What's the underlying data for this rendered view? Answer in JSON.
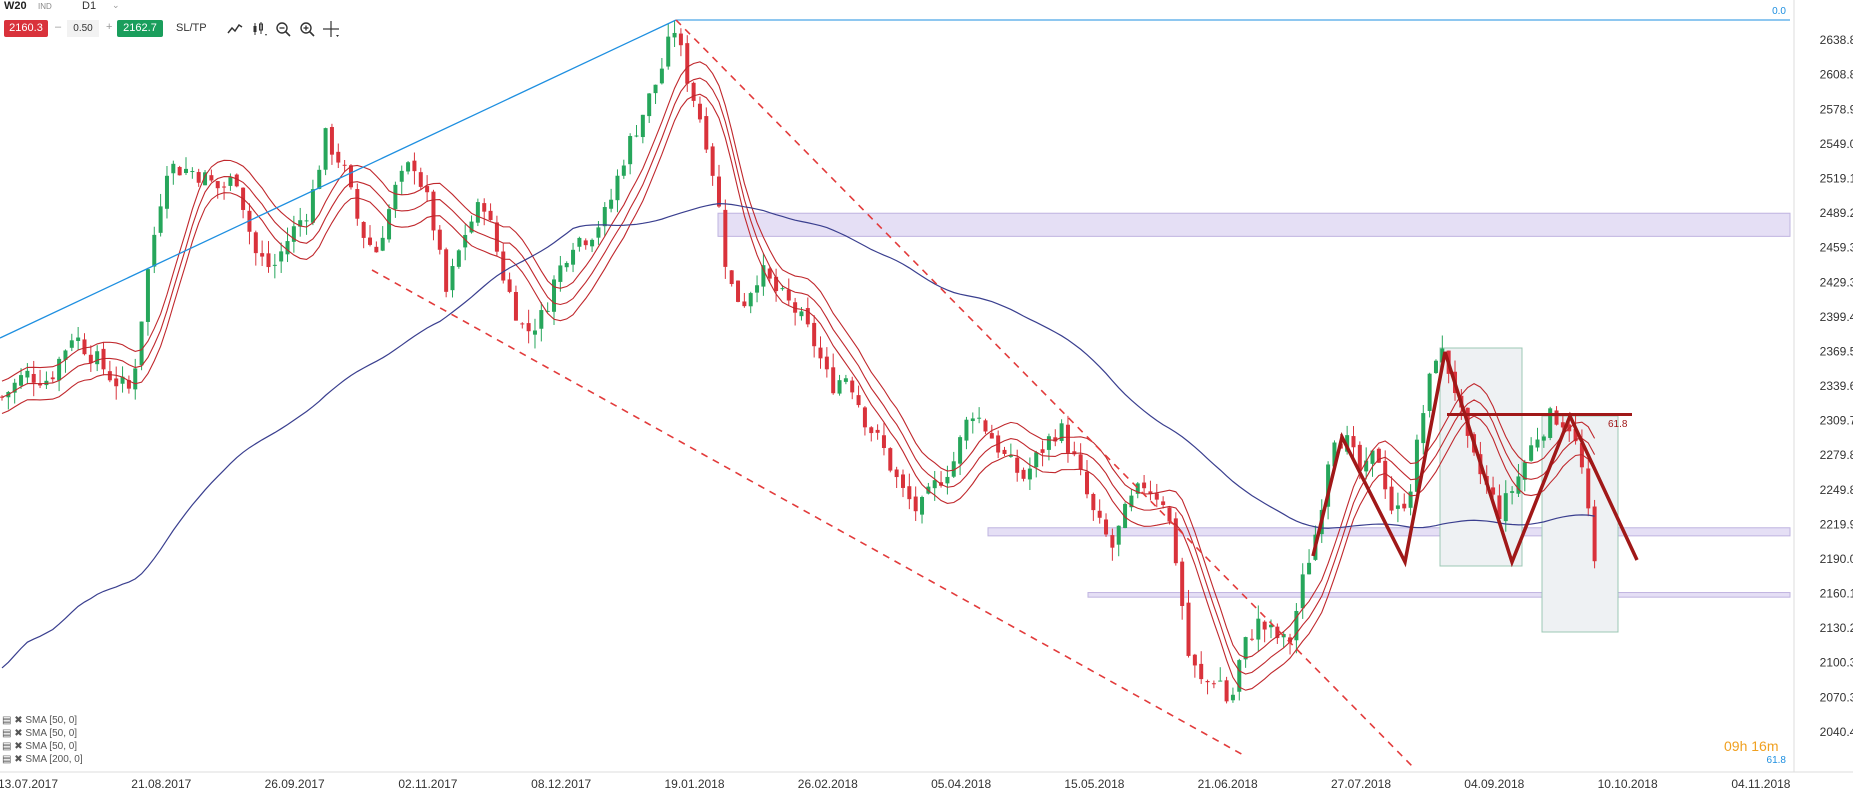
{
  "header": {
    "symbol": "W20",
    "instrument_type": "IND",
    "timeframe": "D1",
    "bid": "2160.3",
    "spread": "0.50",
    "ask": "2162.7",
    "sltp_label": "SL/TP",
    "minus": "–",
    "plus": "+",
    "caret": "⌄"
  },
  "legend": {
    "items": [
      "SMA [50, 0]",
      "SMA [50, 0]",
      "SMA [50, 0]",
      "SMA [200, 0]"
    ]
  },
  "timer": "09h 16m",
  "colors": {
    "up": "#26a65b",
    "down": "#d9323b",
    "envelope": "#c0282d",
    "sma200": "#3a3f8f",
    "trendline": "#1e8fe0",
    "pattern": "#a01818",
    "zone_fill": "#e3dcf5",
    "box_fill": "#eef1f3",
    "box_stroke": "#9cc8b4"
  },
  "chart_data": {
    "type": "candlestick",
    "symbol": "W20",
    "timeframe": "D1",
    "y_ticks": [
      "2638.8",
      "2608.8",
      "2578.9",
      "2549.0",
      "2519.1",
      "2489.2",
      "2459.3",
      "2429.3",
      "2399.4",
      "2369.5",
      "2339.6",
      "2309.7",
      "2279.8",
      "2249.8",
      "2219.9",
      "2190.0",
      "2160.1",
      "2130.2",
      "2100.3",
      "2070.3",
      "2040.4"
    ],
    "x_ticks": [
      "13.07.2017",
      "21.08.2017",
      "26.09.2017",
      "02.11.2017",
      "08.12.2017",
      "19.01.2018",
      "26.02.2018",
      "05.04.2018",
      "15.05.2018",
      "21.06.2018",
      "27.07.2018",
      "04.09.2018",
      "10.10.2018",
      "04.11.2018"
    ],
    "ylim": [
      2030,
      2660
    ],
    "fib_labels": [
      "0.0",
      "61.8",
      "61.8"
    ],
    "horizontal_zones": [
      {
        "from": 2469,
        "to": 2489
      },
      {
        "from": 2210,
        "to": 2217
      },
      {
        "from": 2157,
        "to": 2161
      }
    ],
    "pattern_level": 2315,
    "path": [
      [
        0,
        2330
      ],
      [
        20,
        2350
      ],
      [
        40,
        2345
      ],
      [
        60,
        2385
      ],
      [
        78,
        2365
      ],
      [
        95,
        2345
      ],
      [
        110,
        2335
      ],
      [
        125,
        2445
      ],
      [
        140,
        2530
      ],
      [
        165,
        2525
      ],
      [
        185,
        2510
      ],
      [
        200,
        2520
      ],
      [
        215,
        2455
      ],
      [
        230,
        2440
      ],
      [
        245,
        2470
      ],
      [
        262,
        2495
      ],
      [
        275,
        2555
      ],
      [
        290,
        2530
      ],
      [
        305,
        2475
      ],
      [
        318,
        2455
      ],
      [
        335,
        2510
      ],
      [
        350,
        2535
      ],
      [
        365,
        2490
      ],
      [
        378,
        2420
      ],
      [
        395,
        2475
      ],
      [
        410,
        2500
      ],
      [
        428,
        2430
      ],
      [
        445,
        2385
      ],
      [
        460,
        2400
      ],
      [
        470,
        2430
      ],
      [
        485,
        2465
      ],
      [
        500,
        2470
      ],
      [
        515,
        2490
      ],
      [
        530,
        2540
      ],
      [
        545,
        2575
      ],
      [
        560,
        2610
      ],
      [
        572,
        2650
      ],
      [
        585,
        2600
      ],
      [
        598,
        2560
      ],
      [
        608,
        2510
      ],
      [
        618,
        2430
      ],
      [
        630,
        2410
      ],
      [
        645,
        2440
      ],
      [
        660,
        2420
      ],
      [
        675,
        2405
      ],
      [
        690,
        2380
      ],
      [
        705,
        2340
      ],
      [
        720,
        2350
      ],
      [
        735,
        2310
      ],
      [
        750,
        2285
      ],
      [
        765,
        2250
      ],
      [
        780,
        2230
      ],
      [
        795,
        2255
      ],
      [
        810,
        2275
      ],
      [
        825,
        2320
      ],
      [
        840,
        2300
      ],
      [
        855,
        2275
      ],
      [
        870,
        2260
      ],
      [
        885,
        2285
      ],
      [
        900,
        2305
      ],
      [
        915,
        2270
      ],
      [
        930,
        2225
      ],
      [
        945,
        2200
      ],
      [
        958,
        2235
      ],
      [
        972,
        2255
      ],
      [
        990,
        2240
      ],
      [
        1000,
        2185
      ],
      [
        1010,
        2105
      ],
      [
        1022,
        2080
      ],
      [
        1035,
        2090
      ],
      [
        1045,
        2060
      ],
      [
        1055,
        2110
      ],
      [
        1068,
        2135
      ],
      [
        1082,
        2125
      ],
      [
        1095,
        2115
      ],
      [
        1108,
        2175
      ],
      [
        1120,
        2220
      ],
      [
        1132,
        2300
      ],
      [
        1145,
        2290
      ],
      [
        1158,
        2260
      ],
      [
        1170,
        2285
      ],
      [
        1185,
        2225
      ],
      [
        1198,
        2250
      ],
      [
        1210,
        2320
      ],
      [
        1222,
        2375
      ],
      [
        1235,
        2345
      ],
      [
        1248,
        2285
      ],
      [
        1262,
        2255
      ],
      [
        1275,
        2230
      ],
      [
        1290,
        2260
      ],
      [
        1305,
        2295
      ],
      [
        1320,
        2315
      ],
      [
        1335,
        2305
      ],
      [
        1345,
        2265
      ],
      [
        1352,
        2210
      ],
      [
        1356,
        2180
      ],
      [
        1360,
        2170
      ]
    ]
  }
}
